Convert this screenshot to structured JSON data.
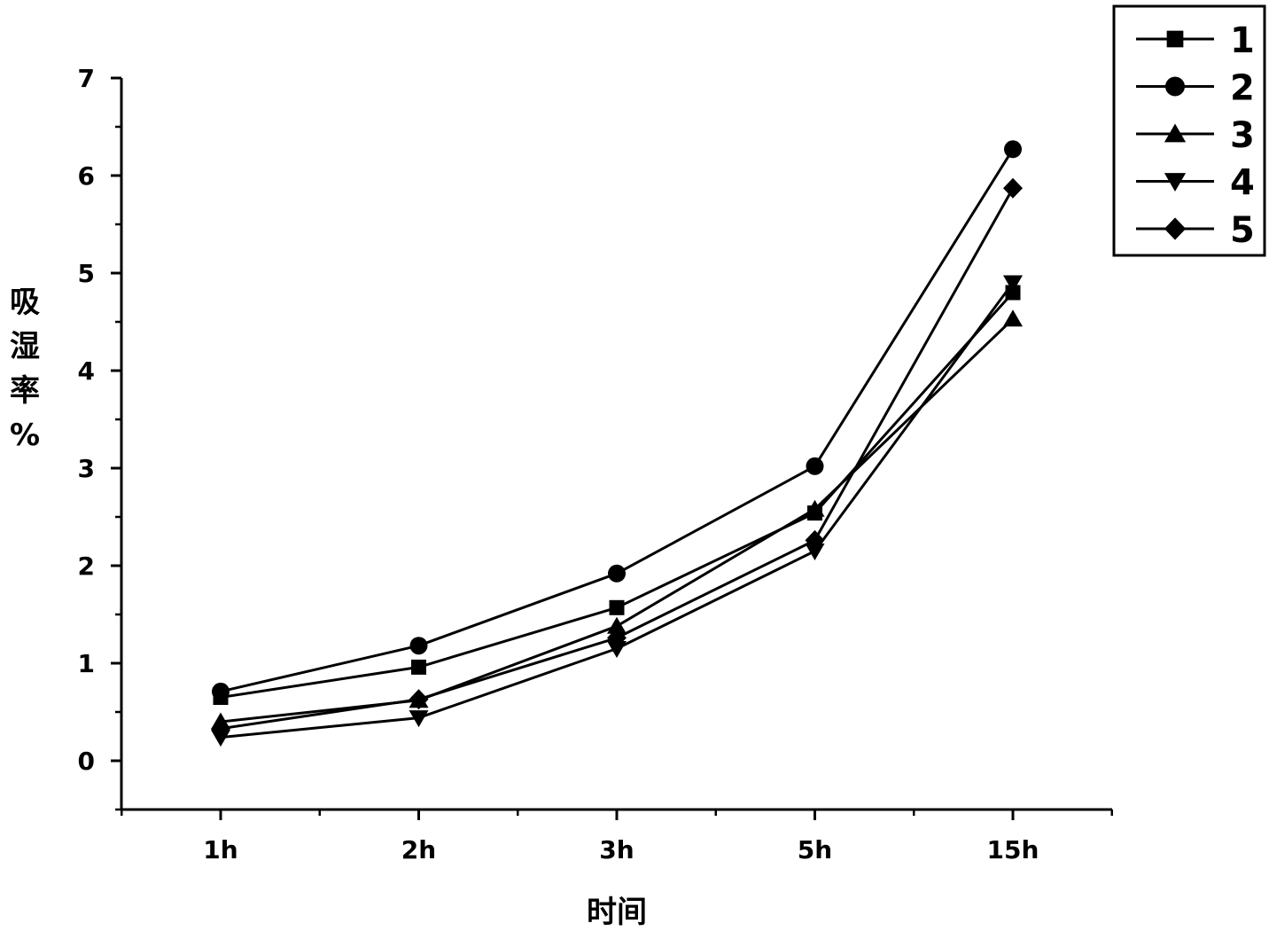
{
  "chart_data": {
    "type": "line",
    "title": "",
    "xlabel": "时间",
    "ylabel_chars": [
      "吸",
      "湿",
      "率",
      "%"
    ],
    "categories": [
      "1h",
      "2h",
      "3h",
      "5h",
      "15h"
    ],
    "y_ticks": [
      "0",
      "1",
      "2",
      "3",
      "4",
      "5",
      "6",
      "7"
    ],
    "ylim": [
      -0.5,
      7
    ],
    "grid": false,
    "legend_position": "top-right",
    "line_color": "#000000",
    "series": [
      {
        "name": "1",
        "marker": "square",
        "values": [
          0.65,
          0.96,
          1.57,
          2.54,
          4.8
        ]
      },
      {
        "name": "2",
        "marker": "circle",
        "values": [
          0.71,
          1.18,
          1.92,
          3.02,
          6.27
        ]
      },
      {
        "name": "3",
        "marker": "triangle-up",
        "values": [
          0.4,
          0.62,
          1.38,
          2.58,
          4.53
        ]
      },
      {
        "name": "4",
        "marker": "triangle-down",
        "values": [
          0.24,
          0.44,
          1.15,
          2.15,
          4.9
        ]
      },
      {
        "name": "5",
        "marker": "diamond",
        "values": [
          0.33,
          0.63,
          1.26,
          2.26,
          5.87
        ]
      }
    ]
  }
}
